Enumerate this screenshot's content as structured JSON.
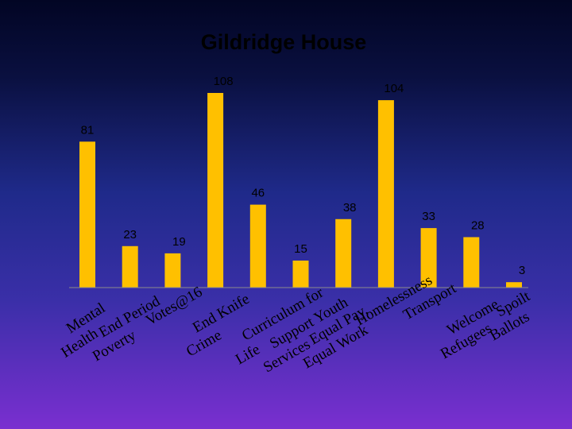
{
  "chart_data": {
    "type": "bar",
    "title": "Gildridge House",
    "xlabel": "",
    "ylabel": "",
    "ylim": [
      0,
      110
    ],
    "grid": false,
    "legend": "none",
    "bar_color": "#FFC000",
    "axis_color": "#8c8c8c",
    "categories": [
      "Mental Health",
      "End Period Poverty",
      "Votes@16",
      "End Knife Crime",
      "Curriculum for Life",
      "Support Youth Services",
      "Equal Pay, Equal Work",
      "Homelessness",
      "Transport",
      "Welcome Refugees",
      "Spoilt Ballots"
    ],
    "values": [
      81,
      23,
      19,
      108,
      46,
      15,
      38,
      104,
      33,
      28,
      3
    ]
  }
}
